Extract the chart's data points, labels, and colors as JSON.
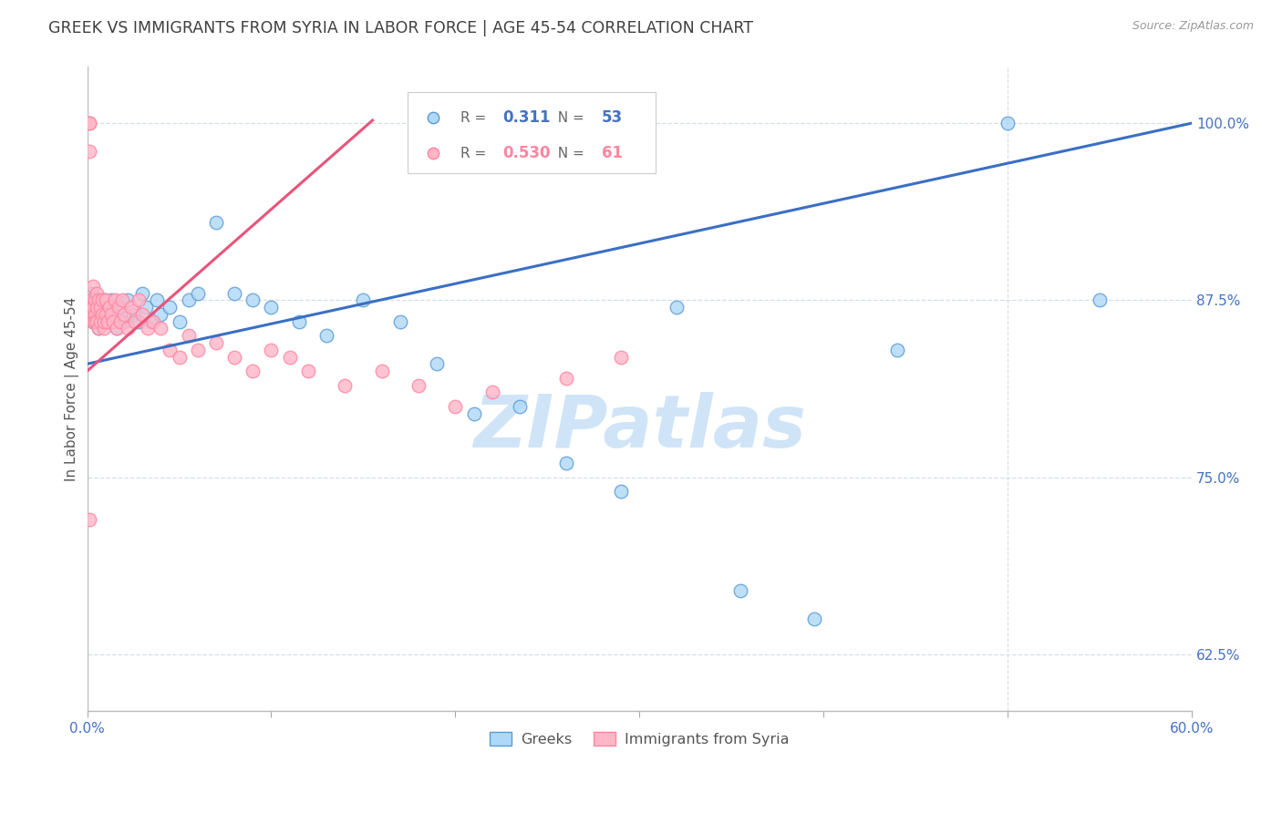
{
  "title": "GREEK VS IMMIGRANTS FROM SYRIA IN LABOR FORCE | AGE 45-54 CORRELATION CHART",
  "source": "Source: ZipAtlas.com",
  "ylabel": "In Labor Force | Age 45-54",
  "xlim": [
    0.0,
    0.6
  ],
  "ylim": [
    0.585,
    1.04
  ],
  "yticks": [
    0.625,
    0.75,
    0.875,
    1.0
  ],
  "ytick_labels": [
    "62.5%",
    "75.0%",
    "87.5%",
    "100.0%"
  ],
  "xticks": [
    0.0,
    0.1,
    0.2,
    0.3,
    0.4,
    0.5,
    0.6
  ],
  "xtick_labels": [
    "0.0%",
    "",
    "",
    "",
    "",
    "",
    "60.0%"
  ],
  "blue_color": "#ADD8F7",
  "pink_color": "#FFB6C8",
  "blue_edge_color": "#5B9BD5",
  "pink_edge_color": "#FF85A0",
  "blue_line_color": "#3A6FC4",
  "pink_line_color": "#E8547A",
  "watermark_color": "#D0E4F7",
  "grid_color": "#D5DEE8",
  "axis_color": "#4472C4",
  "title_color": "#404040",
  "legend_blue_label": "Greeks",
  "legend_pink_label": "Immigrants from Syria",
  "legend_blue_R": "0.311",
  "legend_blue_N": "53",
  "legend_pink_R": "0.530",
  "legend_pink_N": "61",
  "blue_x": [
    0.001,
    0.001,
    0.002,
    0.002,
    0.003,
    0.003,
    0.004,
    0.004,
    0.005,
    0.005,
    0.006,
    0.007,
    0.008,
    0.009,
    0.01,
    0.011,
    0.012,
    0.013,
    0.015,
    0.016,
    0.018,
    0.02,
    0.022,
    0.025,
    0.028,
    0.03,
    0.032,
    0.035,
    0.038,
    0.04,
    0.045,
    0.05,
    0.055,
    0.06,
    0.07,
    0.08,
    0.09,
    0.1,
    0.115,
    0.13,
    0.15,
    0.17,
    0.19,
    0.21,
    0.235,
    0.26,
    0.29,
    0.32,
    0.355,
    0.395,
    0.44,
    0.5,
    0.55
  ],
  "blue_y": [
    0.87,
    0.875,
    0.865,
    0.88,
    0.86,
    0.875,
    0.865,
    0.87,
    0.86,
    0.875,
    0.855,
    0.87,
    0.86,
    0.875,
    0.865,
    0.86,
    0.87,
    0.875,
    0.865,
    0.855,
    0.87,
    0.86,
    0.875,
    0.865,
    0.86,
    0.88,
    0.87,
    0.86,
    0.875,
    0.865,
    0.87,
    0.86,
    0.875,
    0.88,
    0.93,
    0.88,
    0.875,
    0.87,
    0.86,
    0.85,
    0.875,
    0.86,
    0.83,
    0.795,
    0.8,
    0.76,
    0.74,
    0.87,
    0.67,
    0.65,
    0.84,
    1.0,
    0.875
  ],
  "pink_x": [
    0.001,
    0.001,
    0.001,
    0.002,
    0.002,
    0.002,
    0.003,
    0.003,
    0.003,
    0.004,
    0.004,
    0.004,
    0.005,
    0.005,
    0.005,
    0.006,
    0.006,
    0.007,
    0.007,
    0.008,
    0.008,
    0.009,
    0.009,
    0.01,
    0.01,
    0.011,
    0.012,
    0.013,
    0.014,
    0.015,
    0.016,
    0.017,
    0.018,
    0.019,
    0.02,
    0.022,
    0.024,
    0.026,
    0.028,
    0.03,
    0.033,
    0.036,
    0.04,
    0.045,
    0.05,
    0.055,
    0.06,
    0.07,
    0.08,
    0.09,
    0.1,
    0.11,
    0.12,
    0.14,
    0.16,
    0.18,
    0.2,
    0.22,
    0.26,
    0.29,
    0.001
  ],
  "pink_y": [
    1.0,
    1.0,
    0.98,
    0.875,
    0.87,
    0.865,
    0.885,
    0.87,
    0.86,
    0.875,
    0.865,
    0.86,
    0.88,
    0.87,
    0.86,
    0.875,
    0.855,
    0.87,
    0.86,
    0.875,
    0.865,
    0.855,
    0.86,
    0.875,
    0.865,
    0.86,
    0.87,
    0.865,
    0.86,
    0.875,
    0.855,
    0.87,
    0.86,
    0.875,
    0.865,
    0.855,
    0.87,
    0.86,
    0.875,
    0.865,
    0.855,
    0.86,
    0.855,
    0.84,
    0.835,
    0.85,
    0.84,
    0.845,
    0.835,
    0.825,
    0.84,
    0.835,
    0.825,
    0.815,
    0.825,
    0.815,
    0.8,
    0.81,
    0.82,
    0.835,
    0.72
  ],
  "blue_line_x0": 0.0,
  "blue_line_x1": 0.6,
  "blue_line_y0": 0.83,
  "blue_line_y1": 1.0,
  "pink_line_x0": 0.0,
  "pink_line_x1": 0.155,
  "pink_line_y0": 0.825,
  "pink_line_y1": 1.002
}
